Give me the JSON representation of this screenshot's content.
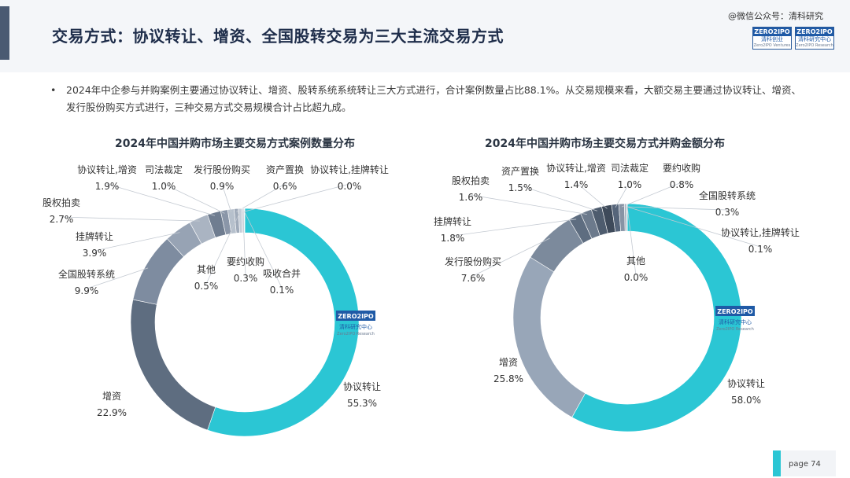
{
  "header": {
    "title": "交易方式：协议转让、增资、全国股转交易为三大主流交易方式",
    "watermark": "@微信公众号：清科研究",
    "logo1": {
      "top": "ZERO2IPO",
      "mid": "清科创业",
      "bot": "Zero2IPO Ventures"
    },
    "logo2": {
      "top": "ZERO2IPO",
      "mid": "清科研究中心",
      "bot": "Zero2IPO Research"
    }
  },
  "summary": {
    "bullet": "•",
    "text": "2024年中企参与并购案例主要通过协议转让、增资、股转系统系统转让三大方式进行，合计案例数量占比88.1%。从交易规模来看，大额交易主要通过协议转让、增资、发行股份购买方式进行，三种交易方式交易规模合计占比超九成。"
  },
  "center_logo": {
    "top": "ZERO2IPO",
    "mid": "清科研究中心",
    "bot": "Zero2IPO Research"
  },
  "footer": {
    "page": "page  74"
  },
  "colors": {
    "teal": "#2bc6d4",
    "navy": "#1e2d4a"
  },
  "chart_data": [
    {
      "type": "pie",
      "title": "2024年中国并购市场主要交易方式案例数量分布",
      "slices": [
        {
          "name": "协议转让",
          "value": 55.3,
          "label": "55.3%",
          "color": "#2bc6d4"
        },
        {
          "name": "增资",
          "value": 22.9,
          "label": "22.9%",
          "color": "#5e6d80"
        },
        {
          "name": "全国股转系统",
          "value": 9.9,
          "label": "9.9%",
          "color": "#7e8ca0"
        },
        {
          "name": "挂牌转让",
          "value": 3.9,
          "label": "3.9%",
          "color": "#97a3b4"
        },
        {
          "name": "股权拍卖",
          "value": 2.7,
          "label": "2.7%",
          "color": "#aab4c2"
        },
        {
          "name": "协议转让,增资",
          "value": 1.9,
          "label": "1.9%",
          "color": "#6f7d90"
        },
        {
          "name": "司法裁定",
          "value": 1.0,
          "label": "1.0%",
          "color": "#8a96a8"
        },
        {
          "name": "发行股份购买",
          "value": 0.9,
          "label": "0.9%",
          "color": "#b6c0cc"
        },
        {
          "name": "资产置换",
          "value": 0.6,
          "label": "0.6%",
          "color": "#a0abba"
        },
        {
          "name": "其他",
          "value": 0.5,
          "label": "0.5%",
          "color": "#c6ced8"
        },
        {
          "name": "要约收购",
          "value": 0.3,
          "label": "0.3%",
          "color": "#d2d8e0"
        },
        {
          "name": "吸收合并",
          "value": 0.1,
          "label": "0.1%",
          "color": "#dde2e8"
        },
        {
          "name": "协议转让,挂牌转让",
          "value": 0.0,
          "label": "0.0%",
          "color": "#e6eaee"
        }
      ]
    },
    {
      "type": "pie",
      "title": "2024年中国并购市场主要交易方式并购金额分布",
      "slices": [
        {
          "name": "协议转让",
          "value": 58.0,
          "label": "58.0%",
          "color": "#2bc6d4"
        },
        {
          "name": "增资",
          "value": 25.8,
          "label": "25.8%",
          "color": "#98a6b8"
        },
        {
          "name": "发行股份购买",
          "value": 7.6,
          "label": "7.6%",
          "color": "#7c8a9c"
        },
        {
          "name": "挂牌转让",
          "value": 1.8,
          "label": "1.8%",
          "color": "#5e6d80"
        },
        {
          "name": "股权拍卖",
          "value": 1.6,
          "label": "1.6%",
          "color": "#6c7a8c"
        },
        {
          "name": "资产置换",
          "value": 1.5,
          "label": "1.5%",
          "color": "#4e5c6e"
        },
        {
          "name": "协议转让,增资",
          "value": 1.4,
          "label": "1.4%",
          "color": "#3e4a5a"
        },
        {
          "name": "司法裁定",
          "value": 1.0,
          "label": "1.0%",
          "color": "#56657a"
        },
        {
          "name": "要约收购",
          "value": 0.8,
          "label": "0.8%",
          "color": "#8793a4"
        },
        {
          "name": "全国股转系统",
          "value": 0.3,
          "label": "0.3%",
          "color": "#a8b3c0"
        },
        {
          "name": "协议转让,挂牌转让",
          "value": 0.1,
          "label": "0.1%",
          "color": "#c4ccd6"
        },
        {
          "name": "其他",
          "value": 0.0,
          "label": "0.0%",
          "color": "#dde2e8"
        }
      ]
    }
  ]
}
